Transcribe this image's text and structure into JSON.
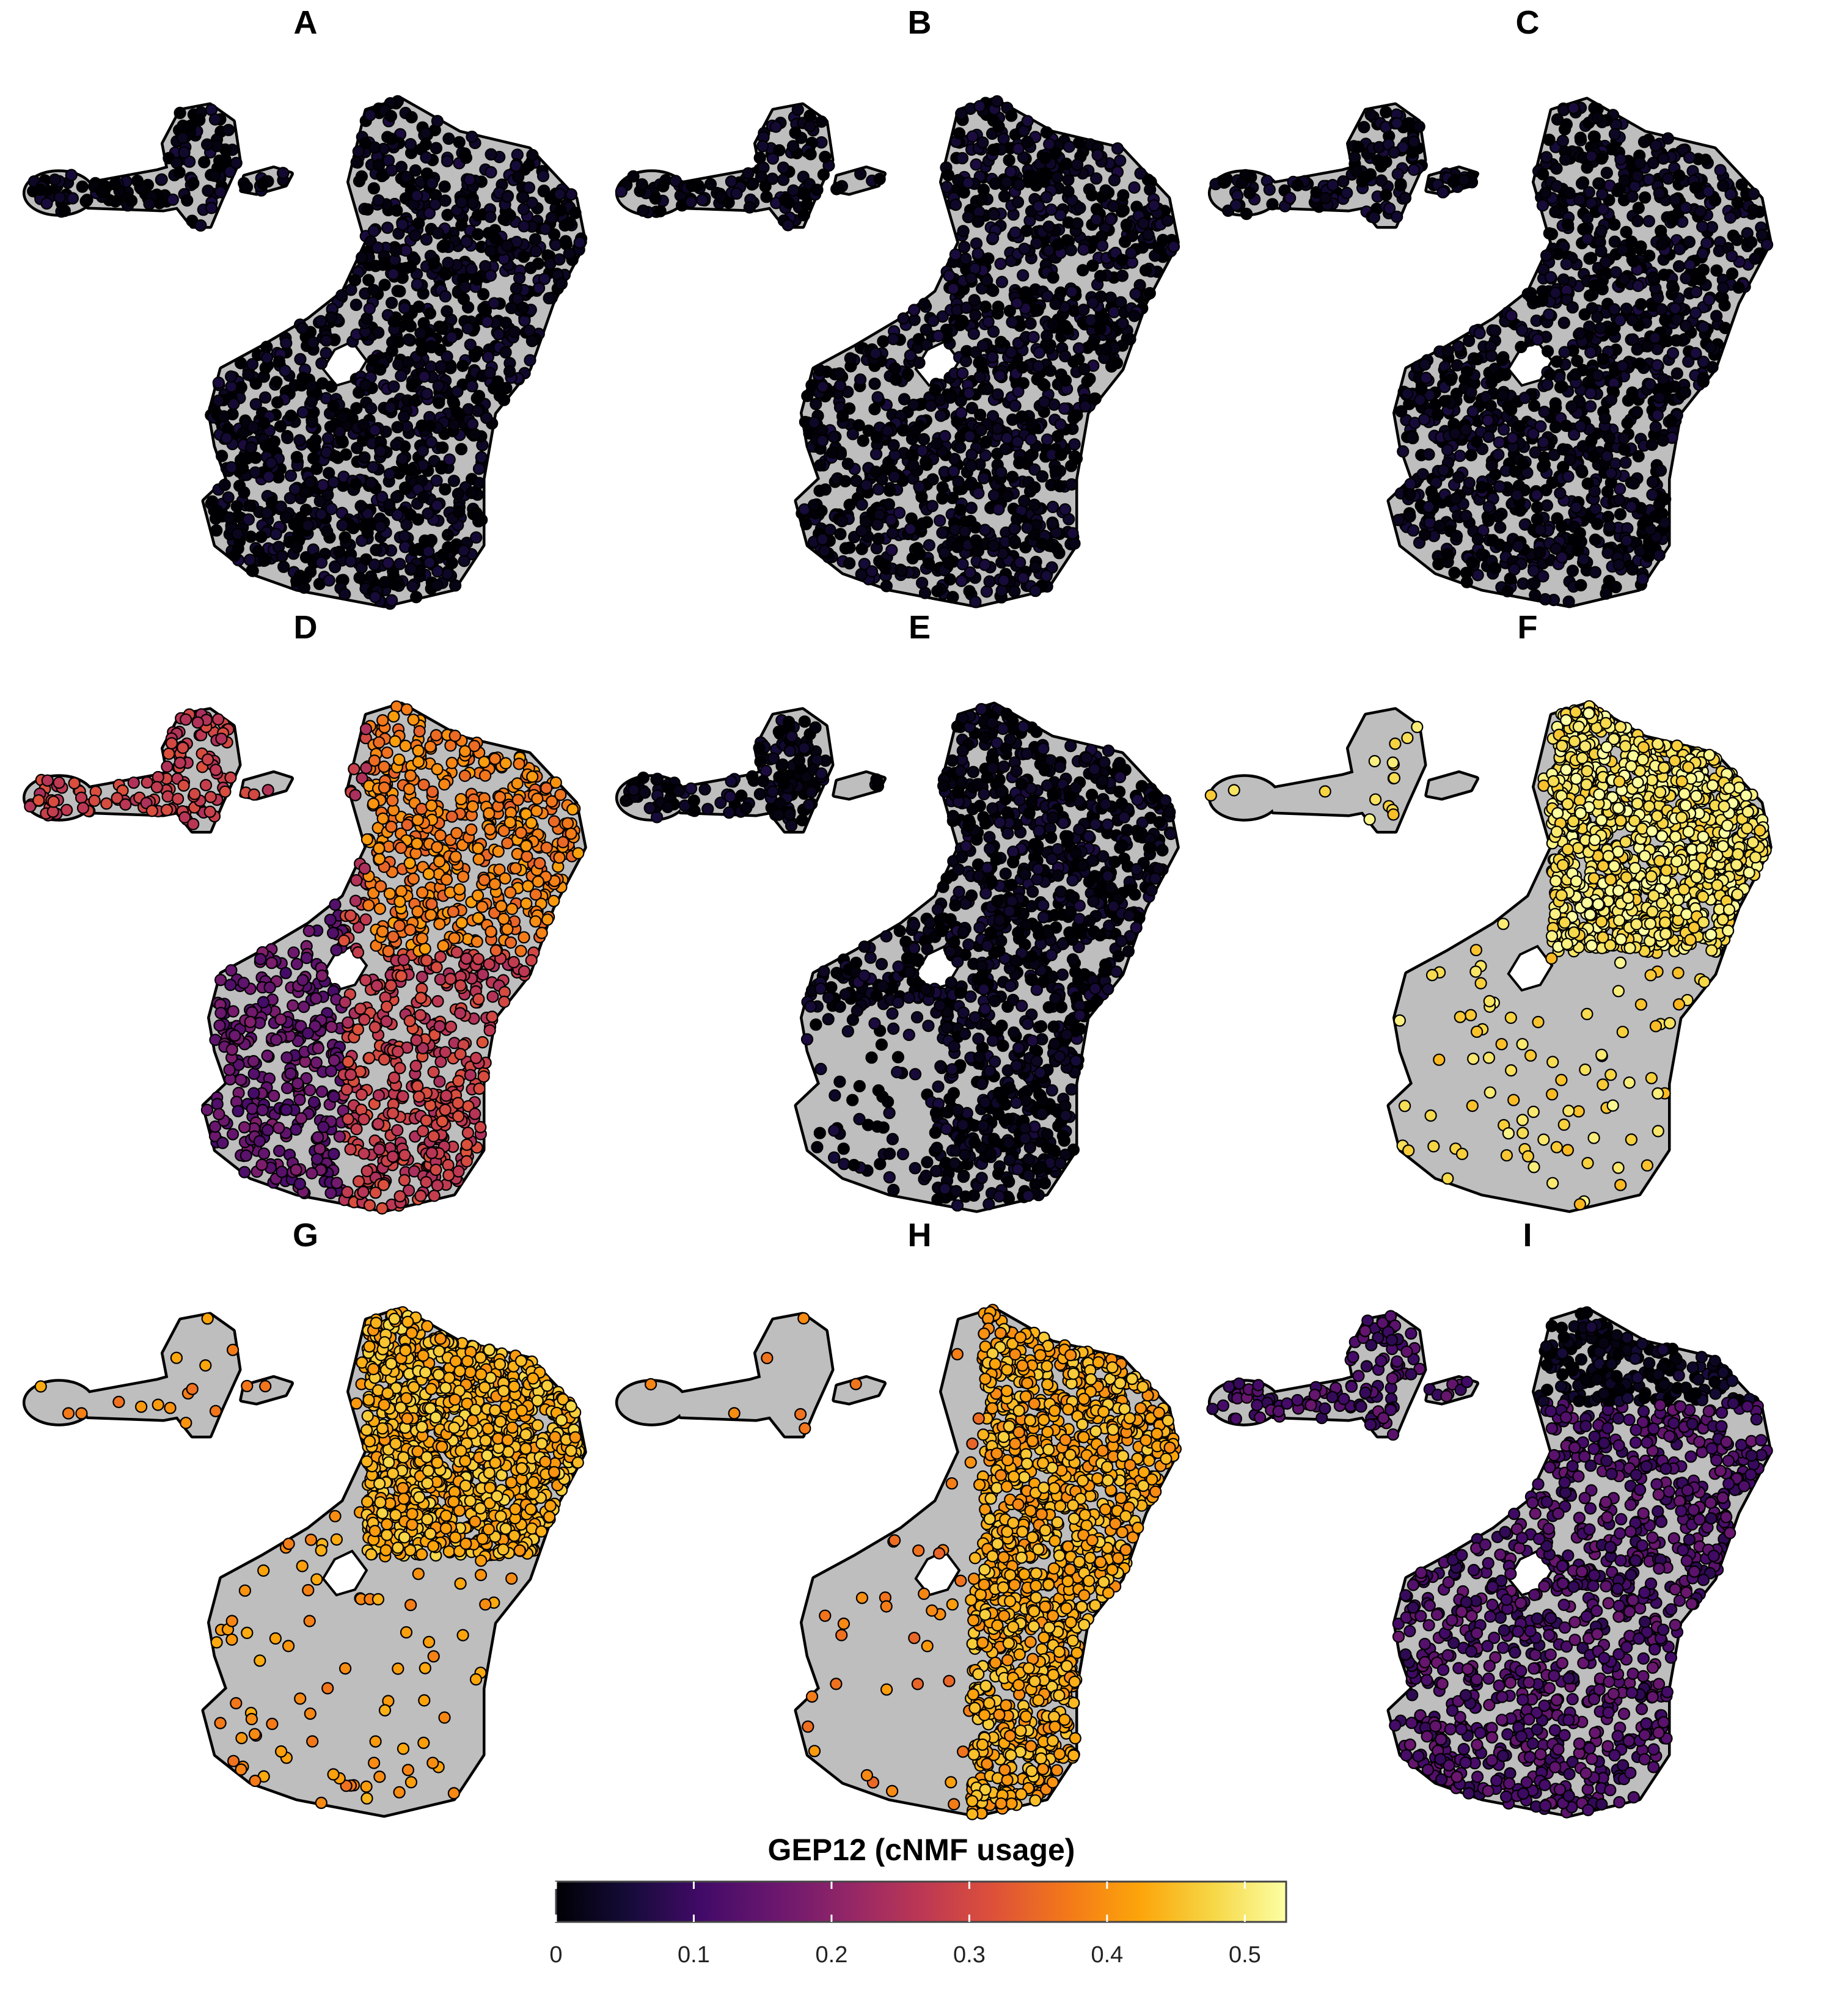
{
  "chart_data": {
    "type": "scatter",
    "description_type": "umap-feature-plot-grid",
    "panels": [
      {
        "label": "A",
        "dominant_usage": 0.02,
        "highlight_region": "spread",
        "highlight_usage": 0.03,
        "coverage": 0.85
      },
      {
        "label": "B",
        "dominant_usage": 0.02,
        "highlight_region": "spread",
        "highlight_usage": 0.03,
        "coverage": 0.92
      },
      {
        "label": "C",
        "dominant_usage": 0.02,
        "highlight_region": "spread",
        "highlight_usage": 0.03,
        "coverage": 0.88
      },
      {
        "label": "D",
        "dominant_usage": 0.28,
        "highlight_region": "upper-right",
        "highlight_usage": 0.38,
        "low_region": "left",
        "low_usage": 0.15,
        "coverage": 0.85
      },
      {
        "label": "E",
        "dominant_usage": 0.02,
        "highlight_region": "spread",
        "highlight_usage": 0.03,
        "coverage": 0.8
      },
      {
        "label": "F",
        "dominant_usage": 0.48,
        "highlight_region": "upper-right",
        "highlight_usage": 0.5,
        "coverage": 0.45
      },
      {
        "label": "G",
        "dominant_usage": 0.4,
        "highlight_region": "upper-right",
        "highlight_usage": 0.44,
        "coverage": 0.45
      },
      {
        "label": "H",
        "dominant_usage": 0.38,
        "highlight_region": "right-band",
        "highlight_usage": 0.43,
        "coverage": 0.5
      },
      {
        "label": "I",
        "dominant_usage": 0.12,
        "highlight_region": "top",
        "highlight_usage": 0.02,
        "coverage": 0.75
      }
    ],
    "legend": {
      "title": "GEP12 (cNMF usage)",
      "range": [
        0,
        0.53
      ],
      "ticks": [
        0,
        0.1,
        0.2,
        0.3,
        0.4,
        0.5
      ],
      "tick_labels": [
        "0",
        "0.1",
        "0.2",
        "0.3",
        "0.4",
        "0.5"
      ],
      "colormap": "inferno"
    },
    "background_color": "#bebebe",
    "outline_color": "#000000"
  }
}
